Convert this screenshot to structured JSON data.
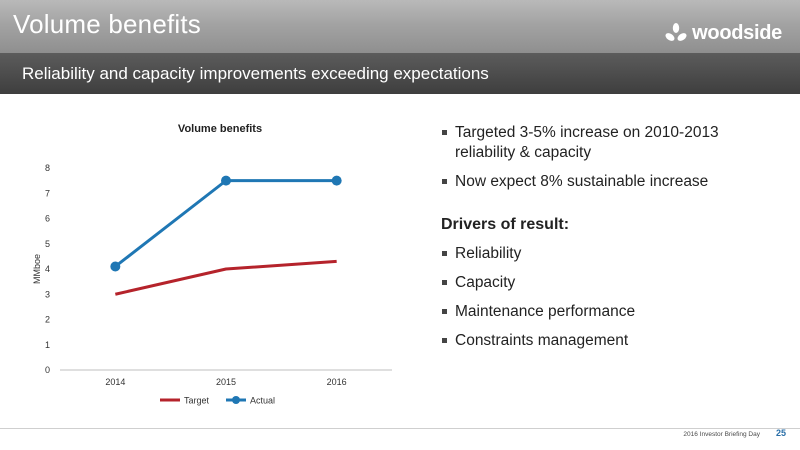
{
  "header": {
    "title": "Volume benefits",
    "brand": "woodside",
    "subtitle": "Reliability and capacity improvements exceeding expectations"
  },
  "colors": {
    "target": "#b5232b",
    "actual": "#1f77b4",
    "grid": "#e0e0e0"
  },
  "chart_data": {
    "type": "line",
    "title": "Volume benefits",
    "xlabel": "",
    "ylabel": "MMboe",
    "categories": [
      "2014",
      "2015",
      "2016"
    ],
    "ylim": [
      0,
      8
    ],
    "yticks": [
      0,
      1,
      2,
      3,
      4,
      5,
      6,
      7,
      8
    ],
    "grid": false,
    "legend": "bottom",
    "series": [
      {
        "name": "Target",
        "values": [
          3.0,
          4.0,
          4.3
        ],
        "markers": false
      },
      {
        "name": "Actual",
        "values": [
          4.1,
          7.5,
          7.5
        ],
        "markers": true
      }
    ]
  },
  "bullets": {
    "items": [
      "Targeted 3-5% increase on 2010-2013 reliability & capacity",
      "Now expect 8% sustainable increase"
    ],
    "drivers_heading": "Drivers of result:",
    "drivers": [
      "Reliability",
      "Capacity",
      "Maintenance performance",
      "Constraints management"
    ]
  },
  "footer": {
    "event": "2016 Investor Briefing Day",
    "page": "25"
  }
}
